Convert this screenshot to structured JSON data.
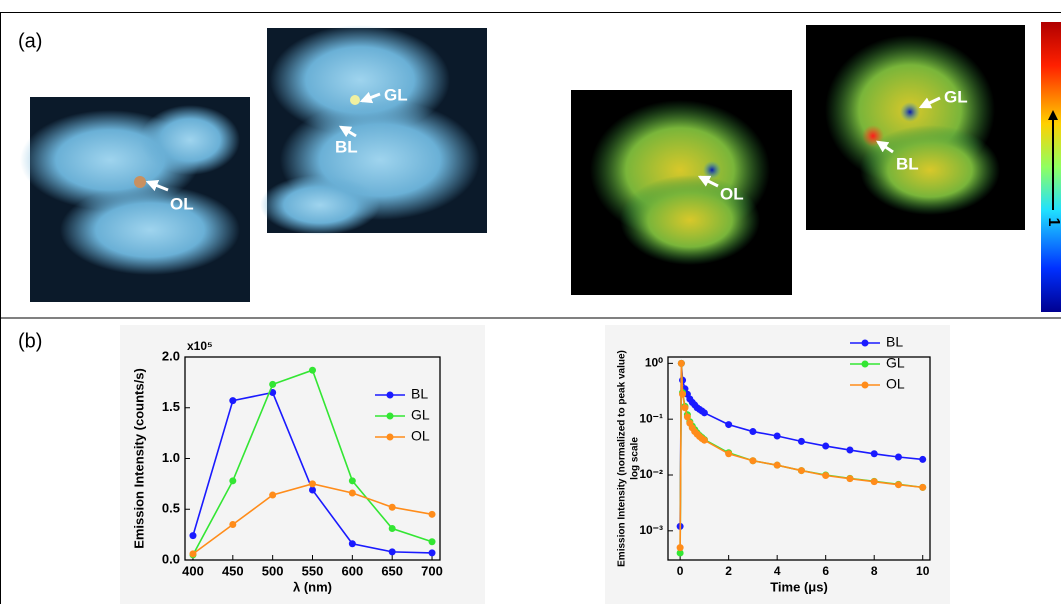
{
  "panel_labels": [
    "(a)",
    "(b)"
  ],
  "images": [
    {
      "labels": [
        "OL"
      ]
    },
    {
      "labels": [
        "GL",
        "BL"
      ]
    },
    {
      "labels": [
        "OL"
      ]
    },
    {
      "labels": [
        "GL",
        "BL"
      ]
    }
  ],
  "colorbar": {
    "label": "1"
  },
  "chart_data": [
    {
      "type": "line",
      "xlabel": "λ (nm)",
      "ylabel": [
        "Emission Intensity (counts/s)"
      ],
      "y_multiplier": "x10⁵",
      "x": [
        400,
        450,
        500,
        550,
        600,
        650,
        700
      ],
      "xlim": [
        390,
        710
      ],
      "xticks": [
        400,
        450,
        500,
        550,
        600,
        650,
        700
      ],
      "ylim": [
        0,
        2.0
      ],
      "yticks": [
        {
          "value": 0,
          "label": "0.0"
        },
        {
          "value": 0.5,
          "label": "0.5"
        },
        {
          "value": 1.0,
          "label": "1.0"
        },
        {
          "value": 1.5,
          "label": "1.5"
        },
        {
          "value": 2.0,
          "label": "2.0"
        }
      ],
      "log": false,
      "series": [
        {
          "name": "BL",
          "color": "#1a1aff",
          "values": [
            0.24,
            1.57,
            1.65,
            0.69,
            0.16,
            0.08,
            0.07
          ]
        },
        {
          "name": "GL",
          "color": "#33e633",
          "values": [
            0.05,
            0.78,
            1.73,
            1.87,
            0.78,
            0.31,
            0.18
          ]
        },
        {
          "name": "OL",
          "color": "#ff8c1a",
          "values": [
            0.06,
            0.35,
            0.64,
            0.75,
            0.66,
            0.52,
            0.45
          ]
        }
      ]
    },
    {
      "type": "line",
      "xlabel": "Time (μs)",
      "ylabel": [
        "Emission Intensity (normalized to peak value)",
        "log scale"
      ],
      "x": [
        0,
        0.05,
        0.1,
        0.2,
        0.3,
        0.4,
        0.5,
        0.6,
        0.7,
        0.8,
        0.9,
        1,
        2,
        3,
        4,
        5,
        6,
        7,
        8,
        9,
        10
      ],
      "xlim": [
        -0.5,
        10.3
      ],
      "xticks": [
        0,
        2,
        4,
        6,
        8,
        10
      ],
      "ylim": [
        0.0003,
        1.3
      ],
      "yticks": [
        {
          "value": 0.001,
          "label": "10⁻³"
        },
        {
          "value": 0.01,
          "label": "10⁻²"
        },
        {
          "value": 0.1,
          "label": "10⁻¹"
        },
        {
          "value": 1,
          "label": "10⁰"
        }
      ],
      "log": true,
      "series": [
        {
          "name": "BL",
          "color": "#1a1aff",
          "values": [
            0.0012,
            1.0,
            0.5,
            0.35,
            0.28,
            0.23,
            0.2,
            0.18,
            0.16,
            0.15,
            0.14,
            0.13,
            0.08,
            0.06,
            0.05,
            0.04,
            0.033,
            0.028,
            0.024,
            0.021,
            0.019
          ]
        },
        {
          "name": "GL",
          "color": "#33e633",
          "values": [
            0.0004,
            1.0,
            0.3,
            0.17,
            0.12,
            0.09,
            0.075,
            0.065,
            0.057,
            0.051,
            0.047,
            0.043,
            0.025,
            0.018,
            0.015,
            0.012,
            0.01,
            0.0087,
            0.0077,
            0.0068,
            0.006
          ]
        },
        {
          "name": "OL",
          "color": "#ff8c1a",
          "values": [
            0.0005,
            1.0,
            0.28,
            0.16,
            0.11,
            0.085,
            0.07,
            0.06,
            0.054,
            0.049,
            0.045,
            0.042,
            0.024,
            0.018,
            0.015,
            0.012,
            0.0098,
            0.0086,
            0.0076,
            0.0067,
            0.006
          ]
        }
      ]
    }
  ]
}
